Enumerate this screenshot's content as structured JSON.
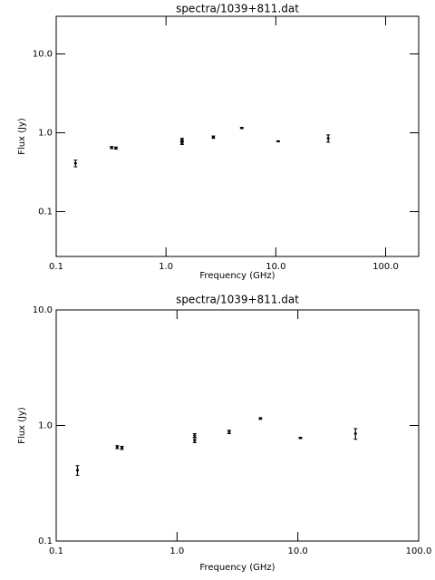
{
  "chart_data": [
    {
      "type": "scatter",
      "title": "spectra/1039+811.dat",
      "x_label": "Frequency (GHz)",
      "y_label": "Flux (Jy)",
      "log_x": true,
      "log_y": true,
      "color": "#000000",
      "x": [
        0.15,
        0.32,
        0.35,
        1.4,
        1.4,
        2.7,
        4.9,
        10.5,
        30
      ],
      "values": [
        0.41,
        0.65,
        0.64,
        0.82,
        0.74,
        0.88,
        1.15,
        0.78,
        0.85
      ],
      "errors": [
        0.04,
        0.02,
        0.02,
        0.03,
        0.03,
        0.03,
        0.02,
        0.01,
        0.09
      ],
      "xlim": [
        0.1,
        200
      ],
      "ylim": [
        0.027,
        30
      ],
      "xticks": [
        0.1,
        {
          "value": 1,
          "label": "1.0"
        },
        {
          "value": 10,
          "label": "10.0"
        },
        {
          "value": 100,
          "label": "100.0"
        }
      ],
      "yticks": [
        0.1,
        {
          "value": 1,
          "label": "1.0"
        },
        {
          "value": 10,
          "label": "10.0"
        }
      ]
    },
    {
      "type": "scatter",
      "title": "spectra/1039+811.dat",
      "x_label": "Frequency (GHz)",
      "y_label": "Flux (Jy)",
      "log_x": true,
      "log_y": true,
      "color": "#000000",
      "x": [
        0.15,
        0.32,
        0.35,
        1.4,
        1.4,
        2.7,
        4.9,
        10.5,
        30
      ],
      "values": [
        0.41,
        0.65,
        0.64,
        0.82,
        0.74,
        0.88,
        1.15,
        0.78,
        0.85
      ],
      "errors": [
        0.04,
        0.02,
        0.02,
        0.03,
        0.03,
        0.03,
        0.02,
        0.01,
        0.09
      ],
      "xlim": [
        0.1,
        100
      ],
      "ylim": [
        0.1,
        10
      ],
      "xticks": [
        0.1,
        {
          "value": 1,
          "label": "1.0"
        },
        {
          "value": 10,
          "label": "10.0"
        },
        {
          "value": 100,
          "label": "100.0"
        }
      ],
      "yticks": [
        0.1,
        {
          "value": 1,
          "label": "1.0"
        },
        {
          "value": 10,
          "label": "10.0"
        }
      ]
    }
  ]
}
